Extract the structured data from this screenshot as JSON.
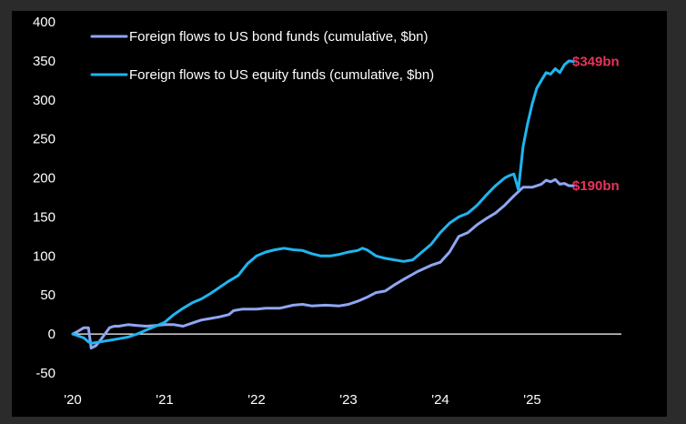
{
  "chart_data": {
    "type": "line",
    "title": "",
    "xlabel": "",
    "ylabel": "",
    "ylim": [
      -50,
      400
    ],
    "xlim": [
      2020.0,
      2026.0
    ],
    "y_ticks": [
      400,
      350,
      300,
      250,
      200,
      150,
      100,
      50,
      0,
      -50
    ],
    "y_tick_labels": [
      "400",
      "350",
      "300",
      "250",
      "200",
      "150",
      "100",
      "50",
      "0",
      "-50"
    ],
    "x_ticks": [
      2020,
      2021,
      2022,
      2023,
      2024,
      2025
    ],
    "x_tick_labels": [
      "'20",
      "'21",
      "'22",
      "'23",
      "'24",
      "'25"
    ],
    "grid": false,
    "legend_position": "top-left",
    "zero_line_color": "#ffffff",
    "series": [
      {
        "name": "Foreign flows to US bond funds (cumulative, $bn)",
        "color": "#8fa6f2",
        "end_label": "$190bn",
        "x": [
          2020.0,
          2020.05,
          2020.12,
          2020.17,
          2020.2,
          2020.25,
          2020.3,
          2020.35,
          2020.4,
          2020.45,
          2020.5,
          2020.6,
          2020.7,
          2020.8,
          2020.9,
          2021.0,
          2021.1,
          2021.2,
          2021.3,
          2021.4,
          2021.5,
          2021.6,
          2021.7,
          2021.75,
          2021.85,
          2022.0,
          2022.1,
          2022.25,
          2022.4,
          2022.5,
          2022.6,
          2022.75,
          2022.9,
          2023.0,
          2023.1,
          2023.2,
          2023.3,
          2023.4,
          2023.5,
          2023.6,
          2023.75,
          2023.9,
          2024.0,
          2024.1,
          2024.2,
          2024.3,
          2024.4,
          2024.5,
          2024.6,
          2024.7,
          2024.8,
          2024.9,
          2025.0,
          2025.1,
          2025.15,
          2025.2,
          2025.25,
          2025.3,
          2025.35,
          2025.4,
          2025.45
        ],
        "values": [
          0,
          3,
          8,
          8,
          -18,
          -15,
          -8,
          0,
          8,
          10,
          10,
          12,
          11,
          10,
          11,
          12,
          12,
          10,
          14,
          18,
          20,
          22,
          25,
          30,
          32,
          32,
          33,
          33,
          37,
          38,
          36,
          37,
          36,
          38,
          42,
          47,
          53,
          55,
          63,
          70,
          80,
          88,
          92,
          105,
          125,
          130,
          140,
          148,
          155,
          165,
          177,
          188,
          188,
          192,
          197,
          195,
          198,
          192,
          193,
          190,
          190
        ]
      },
      {
        "name": "Foreign flows to US equity funds (cumulative, $bn)",
        "color": "#1fb5f0",
        "end_label": "$349bn",
        "x": [
          2020.0,
          2020.05,
          2020.12,
          2020.17,
          2020.2,
          2020.3,
          2020.4,
          2020.5,
          2020.6,
          2020.7,
          2020.8,
          2020.9,
          2021.0,
          2021.1,
          2021.2,
          2021.3,
          2021.4,
          2021.5,
          2021.6,
          2021.7,
          2021.8,
          2021.9,
          2022.0,
          2022.1,
          2022.2,
          2022.3,
          2022.4,
          2022.5,
          2022.6,
          2022.7,
          2022.8,
          2022.9,
          2023.0,
          2023.1,
          2023.15,
          2023.2,
          2023.3,
          2023.4,
          2023.5,
          2023.6,
          2023.7,
          2023.8,
          2023.9,
          2024.0,
          2024.1,
          2024.2,
          2024.3,
          2024.4,
          2024.5,
          2024.6,
          2024.7,
          2024.75,
          2024.8,
          2024.85,
          2024.9,
          2024.95,
          2025.0,
          2025.05,
          2025.1,
          2025.15,
          2025.2,
          2025.25,
          2025.3,
          2025.35,
          2025.4,
          2025.45
        ],
        "values": [
          0,
          -2,
          -5,
          -10,
          -12,
          -10,
          -8,
          -6,
          -4,
          0,
          5,
          10,
          15,
          25,
          33,
          40,
          45,
          52,
          60,
          68,
          75,
          90,
          100,
          105,
          108,
          110,
          108,
          107,
          103,
          100,
          100,
          102,
          105,
          107,
          110,
          108,
          100,
          97,
          95,
          93,
          95,
          105,
          115,
          130,
          142,
          150,
          155,
          165,
          178,
          190,
          200,
          203,
          205,
          185,
          240,
          270,
          295,
          315,
          325,
          335,
          333,
          340,
          335,
          345,
          350,
          349
        ]
      }
    ]
  }
}
